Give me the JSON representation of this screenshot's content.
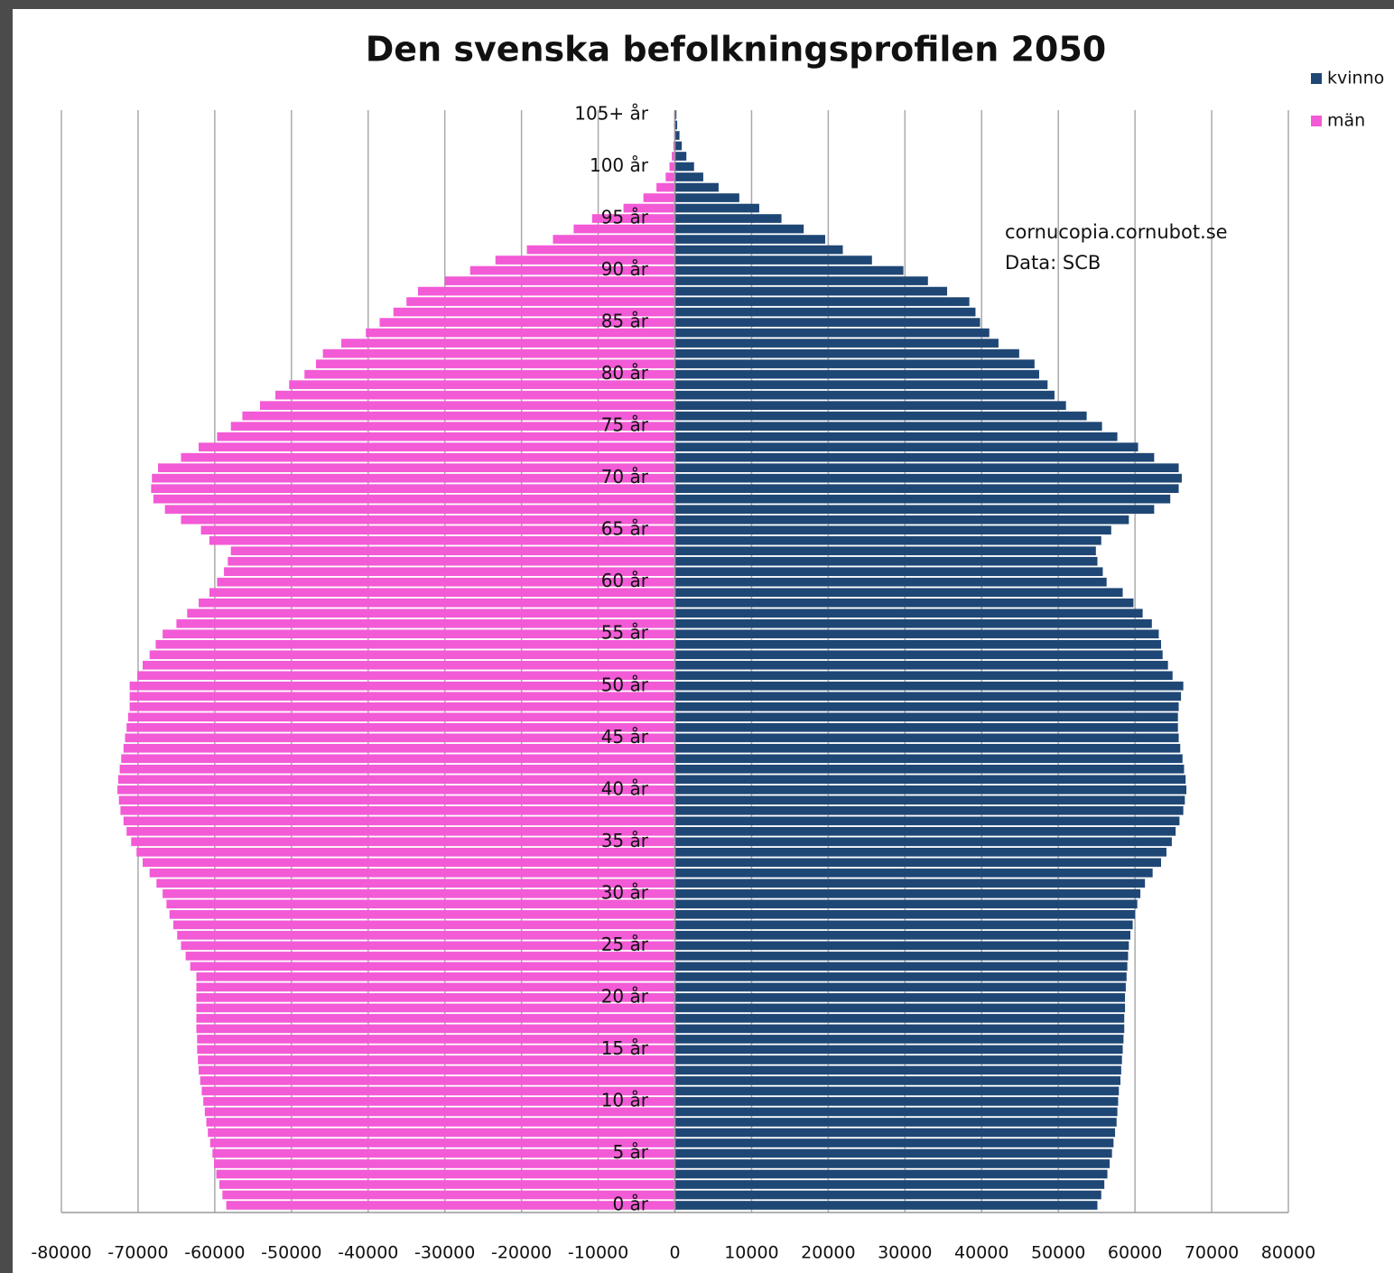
{
  "chart_data": {
    "type": "pyramid",
    "title": "Den svenska befolkningsprofilen 2050",
    "annotations": [
      "cornucopia.cornubot.se",
      "Data: SCB"
    ],
    "categories": [
      "0 år",
      null,
      null,
      null,
      null,
      "5 år",
      null,
      null,
      null,
      null,
      "10 år",
      null,
      null,
      null,
      null,
      "15 år",
      null,
      null,
      null,
      null,
      "20 år",
      null,
      null,
      null,
      null,
      "25 år",
      null,
      null,
      null,
      null,
      "30 år",
      null,
      null,
      null,
      null,
      "35 år",
      null,
      null,
      null,
      null,
      "40 år",
      null,
      null,
      null,
      null,
      "45 år",
      null,
      null,
      null,
      null,
      "50 år",
      null,
      null,
      null,
      null,
      "55 år",
      null,
      null,
      null,
      null,
      "60 år",
      null,
      null,
      null,
      null,
      "65 år",
      null,
      null,
      null,
      null,
      "70 år",
      null,
      null,
      null,
      null,
      "75 år",
      null,
      null,
      null,
      null,
      "80 år",
      null,
      null,
      null,
      null,
      "85 år",
      null,
      null,
      null,
      null,
      "90 år",
      null,
      null,
      null,
      null,
      "95 år",
      null,
      null,
      null,
      null,
      "100 år",
      null,
      null,
      null,
      null,
      "105+ år"
    ],
    "series": [
      {
        "name": "kvinno",
        "color": "#1f4775",
        "values": [
          55100,
          55600,
          56000,
          56400,
          56700,
          57000,
          57200,
          57400,
          57600,
          57700,
          57800,
          57900,
          58100,
          58200,
          58300,
          58400,
          58500,
          58600,
          58600,
          58700,
          58700,
          58800,
          58900,
          59000,
          59100,
          59200,
          59400,
          59700,
          60000,
          60300,
          60700,
          61300,
          62300,
          63400,
          64100,
          64800,
          65300,
          65800,
          66300,
          66500,
          66700,
          66600,
          66400,
          66200,
          65900,
          65700,
          65600,
          65600,
          65700,
          66000,
          66300,
          64900,
          64300,
          63600,
          63400,
          63100,
          62200,
          61000,
          59800,
          58400,
          56300,
          55800,
          55100,
          54900,
          55600,
          56900,
          59200,
          62500,
          64600,
          65700,
          66100,
          65700,
          62500,
          60400,
          57700,
          55700,
          53700,
          51000,
          49500,
          48600,
          47500,
          46900,
          44900,
          42200,
          41000,
          39800,
          39200,
          38400,
          35500,
          33000,
          29800,
          25700,
          21900,
          19600,
          16800,
          13900,
          11000,
          8400,
          5700,
          3700,
          2500,
          1500,
          900,
          600,
          300,
          200
        ]
      },
      {
        "name": "män",
        "color": "#f25ad6",
        "values": [
          -58500,
          -59000,
          -59400,
          -59800,
          -60100,
          -60300,
          -60600,
          -60900,
          -61100,
          -61300,
          -61500,
          -61700,
          -61900,
          -62100,
          -62200,
          -62300,
          -62300,
          -62400,
          -62400,
          -62400,
          -62400,
          -62400,
          -62400,
          -63200,
          -63800,
          -64400,
          -64900,
          -65400,
          -65900,
          -66300,
          -66800,
          -67600,
          -68500,
          -69400,
          -70200,
          -70900,
          -71500,
          -71900,
          -72300,
          -72500,
          -72700,
          -72600,
          -72400,
          -72200,
          -71900,
          -71700,
          -71500,
          -71300,
          -71100,
          -71100,
          -71100,
          -70100,
          -69400,
          -68500,
          -67700,
          -66800,
          -65000,
          -63600,
          -62100,
          -60700,
          -59700,
          -58800,
          -58300,
          -57900,
          -60700,
          -61800,
          -64400,
          -66500,
          -68000,
          -68300,
          -68200,
          -67400,
          -64400,
          -62100,
          -59700,
          -57900,
          -56400,
          -54100,
          -52100,
          -50300,
          -48300,
          -46800,
          -45900,
          -43500,
          -40300,
          -38500,
          -36700,
          -35000,
          -33500,
          -30000,
          -26700,
          -23400,
          -19300,
          -15900,
          -13200,
          -10800,
          -6700,
          -4100,
          -2400,
          -1200,
          -700,
          -400,
          -200,
          -100,
          -100,
          -100
        ]
      }
    ],
    "xlim": [
      -80000,
      80000
    ],
    "xticks": [
      -80000,
      -70000,
      -60000,
      -50000,
      -40000,
      -30000,
      -20000,
      -10000,
      0,
      10000,
      20000,
      30000,
      40000,
      50000,
      60000,
      70000,
      80000
    ],
    "grid": true,
    "legend": "top-right"
  }
}
